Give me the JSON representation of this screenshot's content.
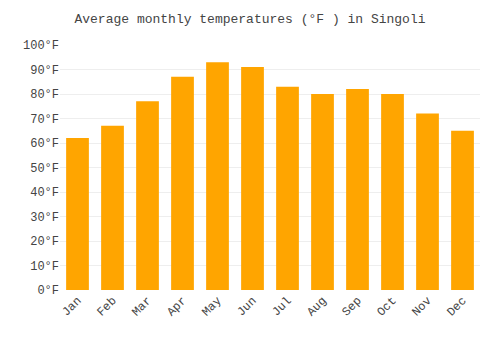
{
  "chart_data": {
    "type": "bar",
    "title": "Average monthly temperatures (°F ) in Singoli",
    "categories": [
      "Jan",
      "Feb",
      "Mar",
      "Apr",
      "May",
      "Jun",
      "Jul",
      "Aug",
      "Sep",
      "Oct",
      "Nov",
      "Dec"
    ],
    "values": [
      62,
      67,
      77,
      87,
      93,
      91,
      83,
      80,
      82,
      80,
      72,
      65
    ],
    "color": "#FFA500",
    "ylim": [
      0,
      100
    ],
    "yticks": [
      {
        "value": 0,
        "label": "0°F"
      },
      {
        "value": 10,
        "label": "10°F"
      },
      {
        "value": 20,
        "label": "20°F"
      },
      {
        "value": 30,
        "label": "30°F"
      },
      {
        "value": 40,
        "label": "40°F"
      },
      {
        "value": 50,
        "label": "50°F"
      },
      {
        "value": 60,
        "label": "60°F"
      },
      {
        "value": 70,
        "label": "70°F"
      },
      {
        "value": 80,
        "label": "80°F"
      },
      {
        "value": 90,
        "label": "90°F"
      },
      {
        "value": 100,
        "label": "100°F"
      }
    ],
    "grid": true
  }
}
